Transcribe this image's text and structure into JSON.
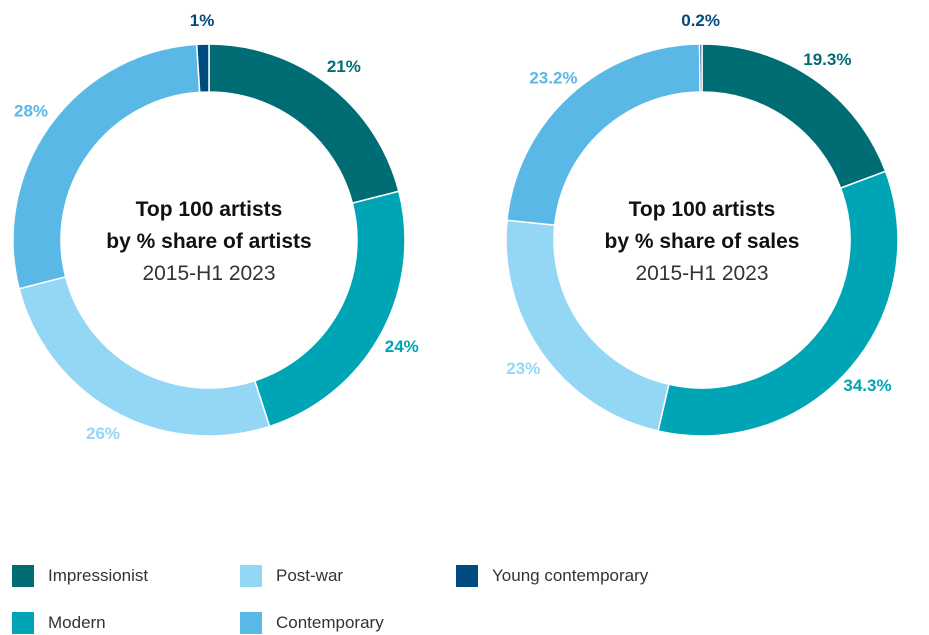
{
  "colors": {
    "Impressionist": "#006d75",
    "Modern": "#00a5b5",
    "Post-war": "#94d7f5",
    "Contemporary": "#59b8e6",
    "Young contemporary": "#004b7e"
  },
  "legend": [
    "Impressionist",
    "Post-war",
    "Young contemporary",
    "Modern",
    "Contemporary"
  ],
  "chart_data": [
    {
      "type": "pie",
      "variant": "donut",
      "title": [
        "Top 100 artists",
        "by % share of artists"
      ],
      "subtitle": "2015-H1 2023",
      "slices": [
        {
          "category": "Impressionist",
          "value": 21,
          "label": "21%"
        },
        {
          "category": "Modern",
          "value": 24,
          "label": "24%"
        },
        {
          "category": "Post-war",
          "value": 26,
          "label": "26%"
        },
        {
          "category": "Contemporary",
          "value": 28,
          "label": "28%"
        },
        {
          "category": "Young contemporary",
          "value": 1,
          "label": "1%"
        }
      ]
    },
    {
      "type": "pie",
      "variant": "donut",
      "title": [
        "Top 100 artists",
        "by % share of sales"
      ],
      "subtitle": "2015-H1 2023",
      "slices": [
        {
          "category": "Impressionist",
          "value": 19.3,
          "label": "19.3%"
        },
        {
          "category": "Modern",
          "value": 34.3,
          "label": "34.3%"
        },
        {
          "category": "Post-war",
          "value": 23,
          "label": "23%"
        },
        {
          "category": "Contemporary",
          "value": 23.2,
          "label": "23.2%"
        },
        {
          "category": "Young contemporary",
          "value": 0.2,
          "label": "0.2%"
        }
      ]
    }
  ]
}
